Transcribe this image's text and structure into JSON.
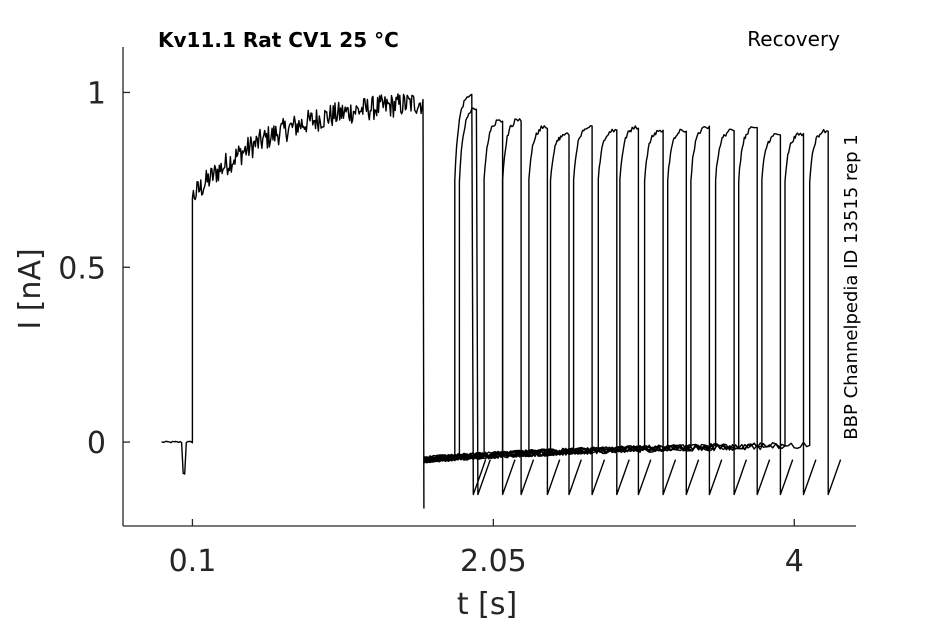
{
  "chart_data": {
    "type": "line",
    "title": "Kv11.1  Rat  CV1  25 °C",
    "subtitle": "Recovery",
    "side_label": "BBP Channelpedia ID 13515 rep 1",
    "xlabel": "t [s]",
    "ylabel": "I [nA]",
    "xlim": [
      -0.35,
      4.4
    ],
    "ylim": [
      -0.24,
      1.13
    ],
    "x_ticks": [
      0.1,
      2.05,
      4
    ],
    "x_tick_labels": [
      "0.1",
      "2.05",
      "4"
    ],
    "y_ticks": [
      0,
      0.5,
      1
    ],
    "y_tick_labels": [
      "0",
      "0.5",
      "1"
    ],
    "grid": false,
    "legend": "none",
    "color": "#000000",
    "holding_start": -0.1,
    "step_on": 0.1,
    "step_off": 1.6,
    "activation_peak": 0.99,
    "recovery_sweeps": [
      {
        "t_start": 1.6,
        "t_end": 1.8,
        "peak": 0.99
      },
      {
        "t_start": 1.6,
        "t_end": 1.83,
        "peak": 0.95
      },
      {
        "t_start": 1.6,
        "t_end": 1.99,
        "peak": 0.92
      },
      {
        "t_start": 1.6,
        "t_end": 2.11,
        "peak": 0.92
      },
      {
        "t_start": 1.6,
        "t_end": 2.28,
        "peak": 0.9
      },
      {
        "t_start": 1.6,
        "t_end": 2.42,
        "peak": 0.88
      },
      {
        "t_start": 1.6,
        "t_end": 2.57,
        "peak": 0.9
      },
      {
        "t_start": 1.6,
        "t_end": 2.73,
        "peak": 0.89
      },
      {
        "t_start": 1.6,
        "t_end": 2.87,
        "peak": 0.9
      },
      {
        "t_start": 1.6,
        "t_end": 3.03,
        "peak": 0.89
      },
      {
        "t_start": 1.6,
        "t_end": 3.18,
        "peak": 0.89
      },
      {
        "t_start": 1.6,
        "t_end": 3.33,
        "peak": 0.9
      },
      {
        "t_start": 1.6,
        "t_end": 3.49,
        "peak": 0.89
      },
      {
        "t_start": 1.6,
        "t_end": 3.64,
        "peak": 0.9
      },
      {
        "t_start": 1.6,
        "t_end": 3.79,
        "peak": 0.88
      },
      {
        "t_start": 1.6,
        "t_end": 3.94,
        "peak": 0.88
      },
      {
        "t_start": 1.6,
        "t_end": 4.1,
        "peak": 0.89
      }
    ],
    "tail_min": -0.15,
    "tail_end": 4.2
  }
}
